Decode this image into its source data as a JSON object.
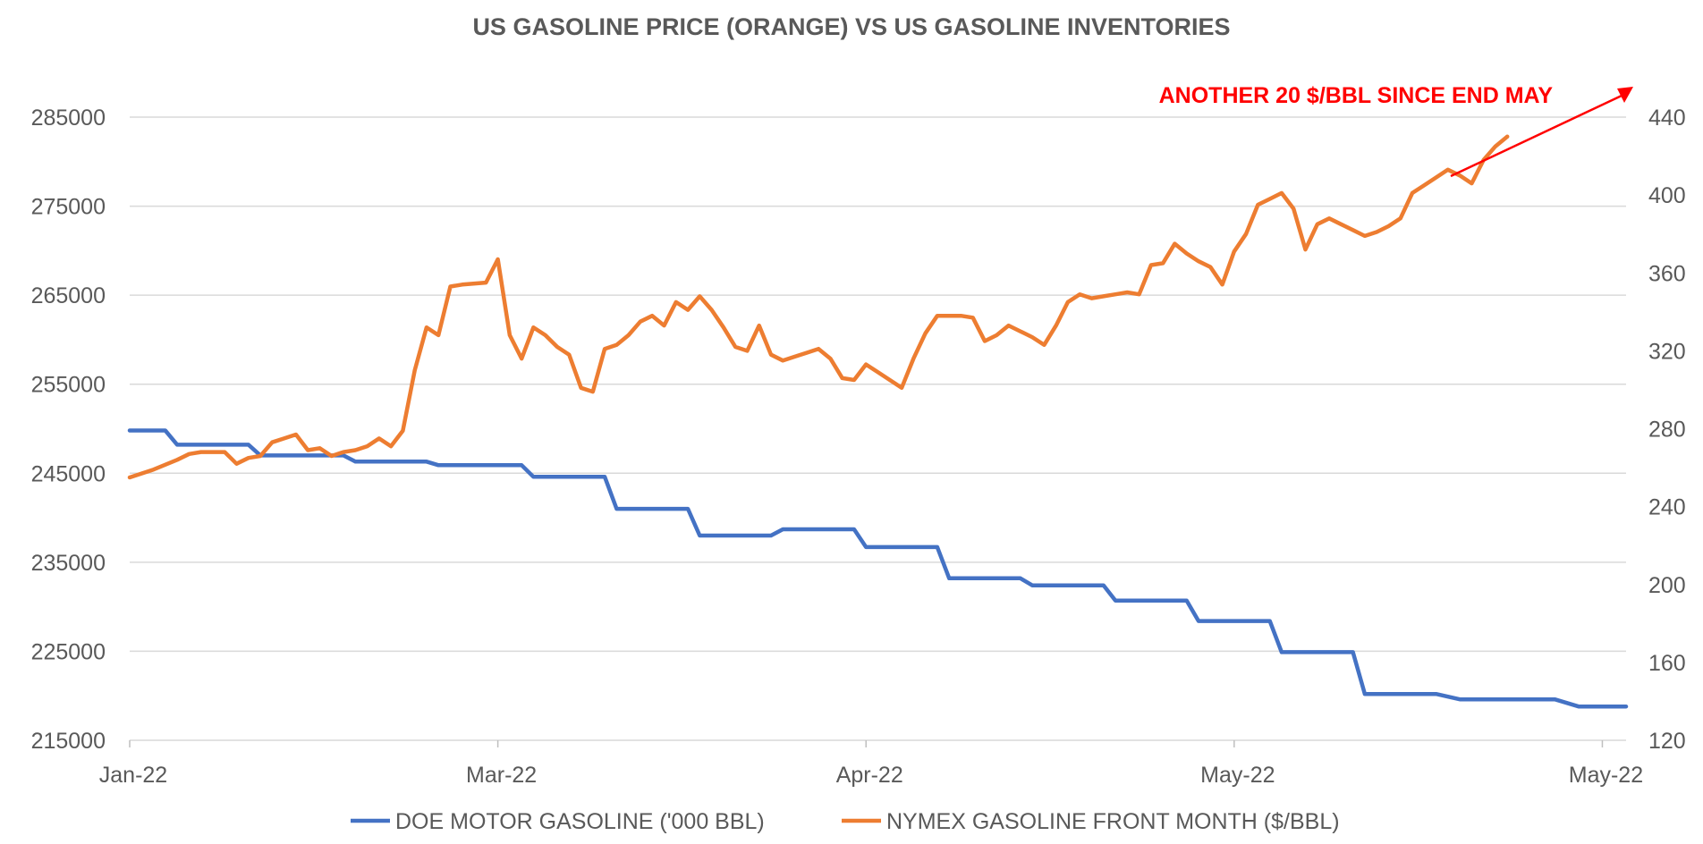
{
  "chart_data": {
    "type": "line",
    "title": "US GASOLINE PRICE (ORANGE) VS US GASOLINE INVENTORIES",
    "annotation": {
      "text": "ANOTHER 20 $/BBL SINCE END MAY",
      "color": "#ff0000"
    },
    "x_ticks": [
      "Jan-22",
      "Mar-22",
      "Apr-22",
      "May-22",
      "May-22"
    ],
    "y_left": {
      "min": 215000,
      "max": 285000,
      "ticks": [
        "285000",
        "275000",
        "265000",
        "255000",
        "245000",
        "235000",
        "225000",
        "215000"
      ]
    },
    "y_right": {
      "min": 120,
      "max": 440,
      "ticks": [
        "440",
        "400",
        "360",
        "320",
        "280",
        "240",
        "200",
        "160",
        "120"
      ]
    },
    "grid": true,
    "legend_position": "bottom",
    "series": [
      {
        "name": "DOE MOTOR GASOLINE ('000 BBL)",
        "axis": "left",
        "color": "#4472c4",
        "points": [
          [
            0,
            249800
          ],
          [
            3,
            249800
          ],
          [
            4,
            248200
          ],
          [
            10,
            248200
          ],
          [
            11,
            247000
          ],
          [
            18,
            247000
          ],
          [
            19,
            246300
          ],
          [
            25,
            246300
          ],
          [
            26,
            245900
          ],
          [
            33,
            245900
          ],
          [
            34,
            244600
          ],
          [
            40,
            244600
          ],
          [
            41,
            241000
          ],
          [
            47,
            241000
          ],
          [
            48,
            238000
          ],
          [
            54,
            238000
          ],
          [
            55,
            238700
          ],
          [
            61,
            238700
          ],
          [
            62,
            236700
          ],
          [
            68,
            236700
          ],
          [
            69,
            233200
          ],
          [
            75,
            233200
          ],
          [
            76,
            232400
          ],
          [
            82,
            232400
          ],
          [
            83,
            230700
          ],
          [
            89,
            230700
          ],
          [
            90,
            228400
          ],
          [
            96,
            228400
          ],
          [
            97,
            224900
          ],
          [
            103,
            224900
          ],
          [
            104,
            220200
          ],
          [
            110,
            220200
          ],
          [
            112,
            219600
          ],
          [
            120,
            219600
          ],
          [
            122,
            218800
          ],
          [
            126,
            218800
          ]
        ]
      },
      {
        "name": "NYMEX GASOLINE FRONT MONTH ($/BBL)",
        "axis": "right",
        "color": "#ed7d31",
        "points": [
          [
            0,
            255
          ],
          [
            2,
            259
          ],
          [
            4,
            264
          ],
          [
            5,
            267
          ],
          [
            6,
            268
          ],
          [
            7,
            268
          ],
          [
            8,
            268
          ],
          [
            9,
            262
          ],
          [
            10,
            265
          ],
          [
            11,
            266
          ],
          [
            12,
            273
          ],
          [
            13,
            275
          ],
          [
            14,
            277
          ],
          [
            15,
            269
          ],
          [
            16,
            270
          ],
          [
            17,
            266
          ],
          [
            18,
            268
          ],
          [
            19,
            269
          ],
          [
            20,
            271
          ],
          [
            21,
            275
          ],
          [
            22,
            271
          ],
          [
            23,
            279
          ],
          [
            24,
            310
          ],
          [
            25,
            332
          ],
          [
            26,
            328
          ],
          [
            27,
            353
          ],
          [
            28,
            354
          ],
          [
            30,
            355
          ],
          [
            31,
            367
          ],
          [
            32,
            328
          ],
          [
            33,
            316
          ],
          [
            34,
            332
          ],
          [
            35,
            328
          ],
          [
            36,
            322
          ],
          [
            37,
            318
          ],
          [
            38,
            301
          ],
          [
            39,
            299
          ],
          [
            40,
            321
          ],
          [
            41,
            323
          ],
          [
            42,
            328
          ],
          [
            43,
            335
          ],
          [
            44,
            338
          ],
          [
            45,
            333
          ],
          [
            46,
            345
          ],
          [
            47,
            341
          ],
          [
            48,
            348
          ],
          [
            49,
            341
          ],
          [
            50,
            332
          ],
          [
            51,
            322
          ],
          [
            52,
            320
          ],
          [
            53,
            333
          ],
          [
            54,
            318
          ],
          [
            55,
            315
          ],
          [
            56,
            317
          ],
          [
            57,
            319
          ],
          [
            58,
            321
          ],
          [
            59,
            316
          ],
          [
            60,
            306
          ],
          [
            61,
            305
          ],
          [
            62,
            313
          ],
          [
            63,
            309
          ],
          [
            64,
            305
          ],
          [
            65,
            301
          ],
          [
            66,
            316
          ],
          [
            67,
            329
          ],
          [
            68,
            338
          ],
          [
            69,
            338
          ],
          [
            70,
            338
          ],
          [
            71,
            337
          ],
          [
            72,
            325
          ],
          [
            73,
            328
          ],
          [
            74,
            333
          ],
          [
            75,
            330
          ],
          [
            76,
            327
          ],
          [
            77,
            323
          ],
          [
            78,
            333
          ],
          [
            79,
            345
          ],
          [
            80,
            349
          ],
          [
            81,
            347
          ],
          [
            82,
            348
          ],
          [
            83,
            349
          ],
          [
            84,
            350
          ],
          [
            85,
            349
          ],
          [
            86,
            364
          ],
          [
            87,
            365
          ],
          [
            88,
            375
          ],
          [
            89,
            370
          ],
          [
            90,
            366
          ],
          [
            91,
            363
          ],
          [
            92,
            354
          ],
          [
            93,
            371
          ],
          [
            94,
            380
          ],
          [
            95,
            395
          ],
          [
            96,
            398
          ],
          [
            97,
            401
          ],
          [
            98,
            393
          ],
          [
            99,
            372
          ],
          [
            100,
            385
          ],
          [
            101,
            388
          ],
          [
            102,
            385
          ],
          [
            103,
            382
          ],
          [
            104,
            379
          ],
          [
            105,
            381
          ],
          [
            106,
            384
          ],
          [
            107,
            388
          ],
          [
            108,
            401
          ],
          [
            109,
            405
          ],
          [
            110,
            409
          ],
          [
            111,
            413
          ],
          [
            112,
            410
          ],
          [
            113,
            406
          ],
          [
            114,
            418
          ],
          [
            115,
            425
          ],
          [
            116,
            430
          ]
        ]
      }
    ]
  }
}
